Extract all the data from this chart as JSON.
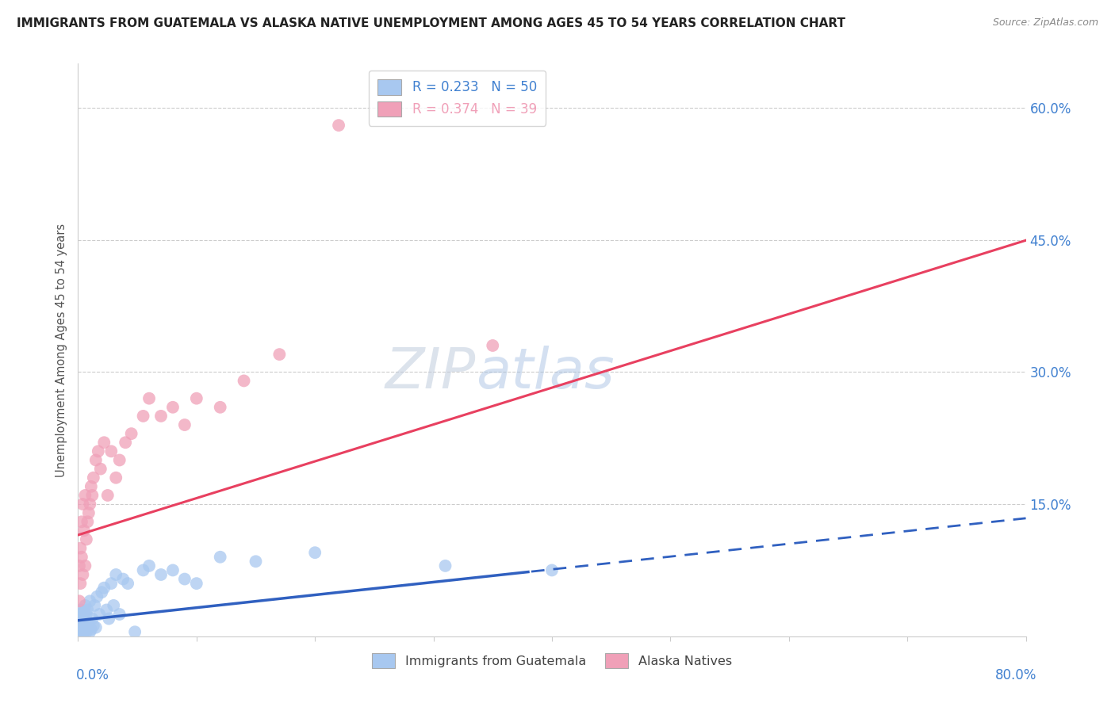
{
  "title": "IMMIGRANTS FROM GUATEMALA VS ALASKA NATIVE UNEMPLOYMENT AMONG AGES 45 TO 54 YEARS CORRELATION CHART",
  "source": "Source: ZipAtlas.com",
  "ylabel": "Unemployment Among Ages 45 to 54 years",
  "right_yticks": [
    "60.0%",
    "45.0%",
    "30.0%",
    "15.0%"
  ],
  "right_ytick_vals": [
    0.6,
    0.45,
    0.3,
    0.15
  ],
  "watermark_zip": "ZIP",
  "watermark_atlas": "atlas",
  "guatemala_color": "#a8c8f0",
  "alaska_color": "#f0a0b8",
  "guatemala_line_color": "#3060c0",
  "alaska_line_color": "#e84060",
  "xlim": [
    0.0,
    0.8
  ],
  "ylim": [
    0.0,
    0.65
  ],
  "background_color": "#ffffff",
  "grid_color": "#cccccc",
  "axis_label_color": "#4080d0",
  "alaska_line_intercept": 0.115,
  "alaska_line_slope": 0.418,
  "guatemala_line_intercept": 0.018,
  "guatemala_line_slope": 0.145,
  "guatemala_scatter_x": [
    0.001,
    0.001,
    0.002,
    0.002,
    0.003,
    0.003,
    0.003,
    0.004,
    0.004,
    0.005,
    0.005,
    0.006,
    0.006,
    0.006,
    0.007,
    0.007,
    0.008,
    0.008,
    0.009,
    0.01,
    0.01,
    0.011,
    0.012,
    0.013,
    0.014,
    0.015,
    0.016,
    0.018,
    0.02,
    0.022,
    0.024,
    0.026,
    0.028,
    0.03,
    0.032,
    0.035,
    0.038,
    0.042,
    0.048,
    0.055,
    0.06,
    0.07,
    0.08,
    0.09,
    0.1,
    0.12,
    0.15,
    0.2,
    0.31,
    0.4
  ],
  "guatemala_scatter_y": [
    0.005,
    0.018,
    0.008,
    0.025,
    0.003,
    0.015,
    0.03,
    0.01,
    0.022,
    0.005,
    0.028,
    0.008,
    0.018,
    0.035,
    0.005,
    0.025,
    0.01,
    0.03,
    0.015,
    0.005,
    0.04,
    0.008,
    0.02,
    0.012,
    0.035,
    0.01,
    0.045,
    0.025,
    0.05,
    0.055,
    0.03,
    0.02,
    0.06,
    0.035,
    0.07,
    0.025,
    0.065,
    0.06,
    0.005,
    0.075,
    0.08,
    0.07,
    0.075,
    0.065,
    0.06,
    0.09,
    0.085,
    0.095,
    0.08,
    0.075
  ],
  "alaska_scatter_x": [
    0.001,
    0.001,
    0.002,
    0.002,
    0.003,
    0.003,
    0.004,
    0.004,
    0.005,
    0.006,
    0.006,
    0.007,
    0.008,
    0.009,
    0.01,
    0.011,
    0.012,
    0.013,
    0.015,
    0.017,
    0.019,
    0.022,
    0.025,
    0.028,
    0.032,
    0.035,
    0.04,
    0.045,
    0.055,
    0.06,
    0.07,
    0.08,
    0.09,
    0.1,
    0.12,
    0.14,
    0.17,
    0.22,
    0.35
  ],
  "alaska_scatter_y": [
    0.04,
    0.08,
    0.06,
    0.1,
    0.09,
    0.13,
    0.07,
    0.15,
    0.12,
    0.08,
    0.16,
    0.11,
    0.13,
    0.14,
    0.15,
    0.17,
    0.16,
    0.18,
    0.2,
    0.21,
    0.19,
    0.22,
    0.16,
    0.21,
    0.18,
    0.2,
    0.22,
    0.23,
    0.25,
    0.27,
    0.25,
    0.26,
    0.24,
    0.27,
    0.26,
    0.29,
    0.32,
    0.58,
    0.33
  ]
}
